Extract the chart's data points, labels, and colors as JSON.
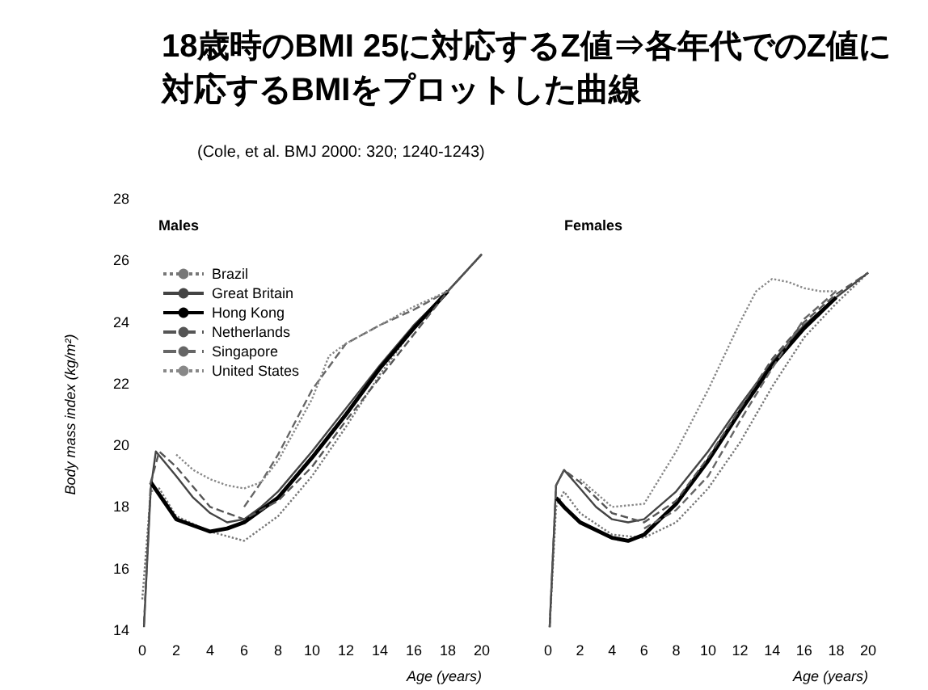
{
  "chart_data": [
    {
      "type": "line",
      "title": "18歳時のBMI 25に対応するZ値⇒各年代でのZ値に対応するBMIをプロットした曲線",
      "subtitle": "Males",
      "annotations": [
        "(Cole, et al. BMJ 2000: 320; 1240-1243)"
      ],
      "xlabel": "Age (years)",
      "ylabel": "Body mass index (kg/m²)",
      "xlim": [
        0,
        20
      ],
      "xticks": [
        0,
        2,
        4,
        6,
        8,
        10,
        12,
        14,
        16,
        18,
        20
      ],
      "ylim": [
        14,
        28
      ],
      "yticks": [
        14,
        16,
        18,
        20,
        22,
        24,
        26,
        28
      ],
      "legend": "top left",
      "marker": "none",
      "series": [
        {
          "name": "Brazil",
          "color": "#777777",
          "line_style": "dotted",
          "x": [
            0,
            0.5,
            1,
            2,
            4,
            6,
            8,
            10,
            12,
            14,
            16,
            18,
            20
          ],
          "values": [
            15,
            18.5,
            18.6,
            17.7,
            17.2,
            16.9,
            17.7,
            19.0,
            20.6,
            22.3,
            23.8,
            25.0,
            26.2
          ]
        },
        {
          "name": "Great Britain",
          "color": "#444444",
          "line_style": "solid",
          "x": [
            0.1,
            0.5,
            0.8,
            2,
            3,
            4,
            5,
            6,
            7,
            8,
            10,
            12,
            14,
            16,
            18,
            20
          ],
          "values": [
            14.1,
            18.6,
            19.8,
            19.0,
            18.3,
            17.8,
            17.5,
            17.6,
            18.0,
            18.5,
            19.8,
            21.2,
            22.6,
            23.9,
            25.0,
            26.2
          ]
        },
        {
          "name": "Hong Kong",
          "color": "#000000",
          "line_style": "solid",
          "x": [
            0.5,
            1,
            2,
            4,
            5,
            6,
            8,
            10,
            12,
            14,
            16,
            18
          ],
          "values": [
            18.8,
            18.4,
            17.6,
            17.2,
            17.3,
            17.5,
            18.3,
            19.6,
            21.0,
            22.5,
            23.8,
            25.0
          ]
        },
        {
          "name": "Netherlands",
          "color": "#555555",
          "line_style": "dashed",
          "x": [
            0.1,
            0.5,
            1,
            2,
            4,
            6,
            8,
            10,
            12,
            14,
            16,
            18,
            20
          ],
          "values": [
            14.2,
            18.8,
            19.8,
            19.3,
            18.0,
            17.6,
            18.2,
            19.3,
            20.8,
            22.2,
            23.6,
            25.0,
            26.2
          ]
        },
        {
          "name": "Singapore",
          "color": "#666666",
          "line_style": "dashed",
          "x": [
            6,
            7,
            8,
            10,
            12,
            14,
            16,
            18
          ],
          "values": [
            18.0,
            18.8,
            19.7,
            21.8,
            23.3,
            23.9,
            24.4,
            25.0
          ]
        },
        {
          "name": "United States",
          "color": "#888888",
          "line_style": "dotted",
          "x": [
            2,
            3,
            4,
            5,
            6,
            7,
            8,
            10,
            11,
            12,
            14,
            16,
            18
          ],
          "values": [
            19.7,
            19.2,
            18.9,
            18.7,
            18.6,
            18.8,
            19.5,
            21.5,
            22.9,
            23.3,
            23.9,
            24.5,
            25.0
          ]
        }
      ]
    },
    {
      "type": "line",
      "subtitle": "Females",
      "xlabel": "Age (years)",
      "xlim": [
        0,
        20
      ],
      "xticks": [
        0,
        2,
        4,
        6,
        8,
        10,
        12,
        14,
        16,
        18,
        20
      ],
      "ylim": [
        14,
        28
      ],
      "tick_labels": "x",
      "legend": false,
      "marker": "none",
      "series": [
        {
          "color": "#777777",
          "line_style": "dotted",
          "x": [
            0.1,
            0.5,
            1,
            2,
            4,
            6,
            8,
            10,
            12,
            14,
            16,
            18,
            20
          ],
          "values": [
            14.1,
            18.0,
            18.5,
            17.8,
            17.1,
            17.0,
            17.5,
            18.6,
            20.1,
            21.9,
            23.5,
            24.6,
            25.6
          ]
        },
        {
          "color": "#444444",
          "line_style": "solid",
          "x": [
            0.1,
            0.5,
            1,
            2,
            3,
            4,
            5,
            6,
            8,
            10,
            12,
            14,
            16,
            18,
            20
          ],
          "values": [
            14.1,
            18.7,
            19.2,
            18.6,
            18.0,
            17.6,
            17.5,
            17.6,
            18.5,
            19.8,
            21.3,
            22.7,
            23.9,
            24.8,
            25.6
          ]
        },
        {
          "color": "#000000",
          "line_style": "solid",
          "x": [
            0.5,
            1,
            2,
            4,
            5,
            6,
            8,
            10,
            12,
            14,
            16,
            18
          ],
          "values": [
            18.3,
            18.0,
            17.5,
            17.0,
            16.9,
            17.1,
            18.1,
            19.5,
            21.1,
            22.6,
            23.8,
            24.8
          ]
        },
        {
          "color": "#555555",
          "line_style": "dashed",
          "x": [
            0.1,
            0.5,
            1,
            2,
            4,
            6,
            8,
            10,
            12,
            14,
            16,
            18,
            20
          ],
          "values": [
            14.1,
            18.7,
            19.2,
            18.8,
            17.8,
            17.5,
            18.2,
            19.6,
            21.2,
            22.8,
            24.0,
            24.9,
            25.6
          ]
        },
        {
          "color": "#666666",
          "line_style": "dashed",
          "x": [
            6,
            8,
            10,
            12,
            14,
            16,
            18
          ],
          "values": [
            17.3,
            17.9,
            19.0,
            20.8,
            22.5,
            24.1,
            25.0
          ]
        },
        {
          "color": "#888888",
          "line_style": "dotted",
          "x": [
            2,
            4,
            6,
            8,
            10,
            12,
            13,
            14,
            15,
            16,
            17,
            18
          ],
          "values": [
            18.9,
            18.0,
            18.1,
            19.8,
            21.8,
            24.0,
            25.0,
            25.4,
            25.3,
            25.1,
            25.0,
            25.0
          ]
        }
      ]
    }
  ]
}
